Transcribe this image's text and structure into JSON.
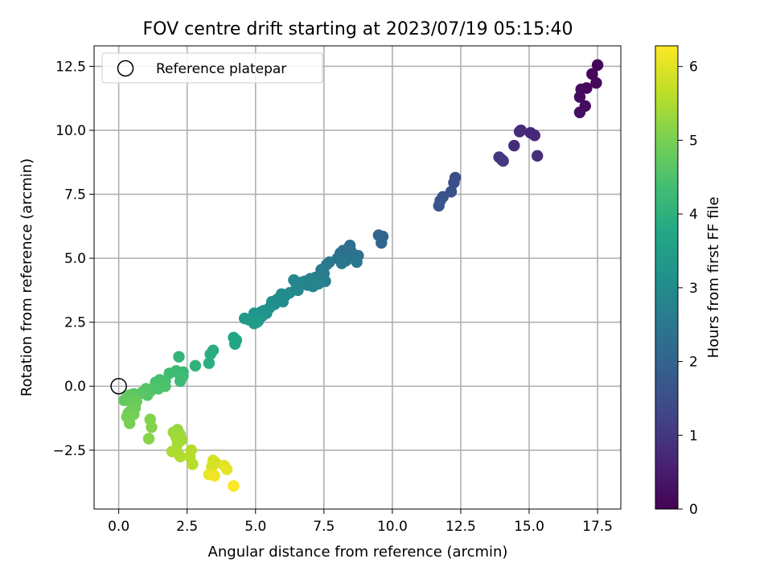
{
  "chart_data": {
    "type": "scatter",
    "title": "FOV centre drift starting at 2023/07/19 05:15:40",
    "xlabel": "Angular distance from reference (arcmin)",
    "ylabel": "Rotation from reference (arcmin)",
    "xlim": [
      -0.9,
      18.35
    ],
    "ylim": [
      -4.8,
      13.3
    ],
    "xticks": [
      0,
      2.5,
      5,
      7.5,
      10,
      12.5,
      15,
      17.5
    ],
    "xtick_labels": [
      "0.0",
      "2.5",
      "5.0",
      "7.5",
      "10.0",
      "12.5",
      "15.0",
      "17.5"
    ],
    "yticks": [
      -2.5,
      0,
      2.5,
      5,
      7.5,
      10,
      12.5
    ],
    "ytick_labels": [
      "−2.5",
      "0.0",
      "2.5",
      "5.0",
      "7.5",
      "10.0",
      "12.5"
    ],
    "grid": true,
    "legend": {
      "position": "top-left",
      "entries": [
        {
          "label": "Reference platepar",
          "marker": "open-circle"
        }
      ]
    },
    "reference_point": {
      "x": 0.0,
      "y": 0.0
    },
    "colorbar": {
      "label": "Hours from first FF file",
      "colormap": "viridis",
      "range": [
        0,
        6.28
      ],
      "ticks": [
        0,
        1,
        2,
        3,
        4,
        5,
        6
      ],
      "tick_labels": [
        "0",
        "1",
        "2",
        "3",
        "4",
        "5",
        "6"
      ]
    },
    "series": [
      {
        "points": [
          {
            "x": 17.5,
            "y": 12.55,
            "c": 0.05
          },
          {
            "x": 17.3,
            "y": 12.2,
            "c": 0.1
          },
          {
            "x": 17.45,
            "y": 11.85,
            "c": 0.12
          },
          {
            "x": 17.1,
            "y": 11.65,
            "c": 0.15
          },
          {
            "x": 16.9,
            "y": 11.6,
            "c": 0.18
          },
          {
            "x": 16.85,
            "y": 11.3,
            "c": 0.2
          },
          {
            "x": 17.05,
            "y": 10.95,
            "c": 0.22
          },
          {
            "x": 16.85,
            "y": 10.7,
            "c": 0.25
          },
          {
            "x": 15.05,
            "y": 9.9,
            "c": 0.7
          },
          {
            "x": 15.2,
            "y": 9.8,
            "c": 0.72
          },
          {
            "x": 14.65,
            "y": 9.95,
            "c": 0.75
          },
          {
            "x": 14.7,
            "y": 10.0,
            "c": 0.78
          },
          {
            "x": 14.45,
            "y": 9.4,
            "c": 0.8
          },
          {
            "x": 15.3,
            "y": 9.0,
            "c": 0.85
          },
          {
            "x": 13.9,
            "y": 8.95,
            "c": 1.0
          },
          {
            "x": 14.0,
            "y": 8.85,
            "c": 1.02
          },
          {
            "x": 14.05,
            "y": 8.8,
            "c": 1.05
          },
          {
            "x": 12.3,
            "y": 8.15,
            "c": 1.5
          },
          {
            "x": 12.25,
            "y": 7.95,
            "c": 1.52
          },
          {
            "x": 12.15,
            "y": 7.6,
            "c": 1.55
          },
          {
            "x": 11.85,
            "y": 7.4,
            "c": 1.6
          },
          {
            "x": 11.75,
            "y": 7.25,
            "c": 1.62
          },
          {
            "x": 11.7,
            "y": 7.05,
            "c": 1.65
          },
          {
            "x": 9.5,
            "y": 5.9,
            "c": 2.0
          },
          {
            "x": 9.65,
            "y": 5.85,
            "c": 2.02
          },
          {
            "x": 9.6,
            "y": 5.6,
            "c": 2.05
          },
          {
            "x": 8.45,
            "y": 5.5,
            "c": 2.25
          },
          {
            "x": 8.2,
            "y": 5.3,
            "c": 2.3
          },
          {
            "x": 8.1,
            "y": 5.2,
            "c": 2.32
          },
          {
            "x": 8.5,
            "y": 5.25,
            "c": 2.35
          },
          {
            "x": 8.75,
            "y": 5.1,
            "c": 2.38
          },
          {
            "x": 8.6,
            "y": 5.05,
            "c": 2.4
          },
          {
            "x": 8.0,
            "y": 5.0,
            "c": 2.42
          },
          {
            "x": 8.3,
            "y": 4.9,
            "c": 2.45
          },
          {
            "x": 8.7,
            "y": 4.85,
            "c": 2.48
          },
          {
            "x": 8.15,
            "y": 4.8,
            "c": 2.5
          },
          {
            "x": 7.7,
            "y": 4.85,
            "c": 2.5
          },
          {
            "x": 7.6,
            "y": 4.75,
            "c": 2.55
          },
          {
            "x": 7.4,
            "y": 4.55,
            "c": 2.6
          },
          {
            "x": 7.5,
            "y": 4.4,
            "c": 2.62
          },
          {
            "x": 7.55,
            "y": 4.1,
            "c": 2.65
          },
          {
            "x": 7.2,
            "y": 4.25,
            "c": 2.7
          },
          {
            "x": 7.0,
            "y": 4.2,
            "c": 2.72
          },
          {
            "x": 6.8,
            "y": 4.1,
            "c": 2.75
          },
          {
            "x": 6.9,
            "y": 3.95,
            "c": 2.78
          },
          {
            "x": 7.1,
            "y": 3.9,
            "c": 2.8
          },
          {
            "x": 7.3,
            "y": 4.0,
            "c": 2.82
          },
          {
            "x": 6.65,
            "y": 4.05,
            "c": 2.85
          },
          {
            "x": 6.5,
            "y": 3.95,
            "c": 2.88
          },
          {
            "x": 6.4,
            "y": 4.15,
            "c": 2.9
          },
          {
            "x": 6.55,
            "y": 3.75,
            "c": 2.92
          },
          {
            "x": 6.25,
            "y": 3.65,
            "c": 2.95
          },
          {
            "x": 6.1,
            "y": 3.55,
            "c": 2.98
          },
          {
            "x": 5.95,
            "y": 3.6,
            "c": 3.0
          },
          {
            "x": 5.8,
            "y": 3.4,
            "c": 3.02
          },
          {
            "x": 6.0,
            "y": 3.3,
            "c": 3.05
          },
          {
            "x": 5.7,
            "y": 3.2,
            "c": 3.08
          },
          {
            "x": 5.6,
            "y": 3.3,
            "c": 3.1
          },
          {
            "x": 5.5,
            "y": 3.05,
            "c": 3.12
          },
          {
            "x": 5.3,
            "y": 2.95,
            "c": 3.15
          },
          {
            "x": 5.4,
            "y": 2.85,
            "c": 3.18
          },
          {
            "x": 5.2,
            "y": 2.9,
            "c": 3.2
          },
          {
            "x": 5.25,
            "y": 2.75,
            "c": 3.22
          },
          {
            "x": 4.95,
            "y": 2.85,
            "c": 3.25
          },
          {
            "x": 4.9,
            "y": 2.65,
            "c": 3.28
          },
          {
            "x": 5.1,
            "y": 2.55,
            "c": 3.3
          },
          {
            "x": 4.95,
            "y": 2.45,
            "c": 3.32
          },
          {
            "x": 4.75,
            "y": 2.6,
            "c": 3.35
          },
          {
            "x": 4.6,
            "y": 2.65,
            "c": 3.38
          },
          {
            "x": 5.05,
            "y": 2.5,
            "c": 3.4
          },
          {
            "x": 4.2,
            "y": 1.9,
            "c": 3.7
          },
          {
            "x": 4.3,
            "y": 1.8,
            "c": 3.72
          },
          {
            "x": 4.25,
            "y": 1.65,
            "c": 3.75
          },
          {
            "x": 3.45,
            "y": 1.4,
            "c": 3.9
          },
          {
            "x": 3.35,
            "y": 1.25,
            "c": 3.92
          },
          {
            "x": 3.3,
            "y": 0.9,
            "c": 3.95
          },
          {
            "x": 2.8,
            "y": 0.8,
            "c": 4.05
          },
          {
            "x": 2.2,
            "y": 1.15,
            "c": 4.1
          },
          {
            "x": 2.35,
            "y": 0.55,
            "c": 4.2
          },
          {
            "x": 2.2,
            "y": 0.5,
            "c": 4.22
          },
          {
            "x": 2.1,
            "y": 0.6,
            "c": 4.25
          },
          {
            "x": 2.35,
            "y": 0.4,
            "c": 4.28
          },
          {
            "x": 2.25,
            "y": 0.2,
            "c": 4.3
          },
          {
            "x": 1.85,
            "y": 0.5,
            "c": 4.32
          },
          {
            "x": 1.7,
            "y": 0.2,
            "c": 4.38
          },
          {
            "x": 1.55,
            "y": 0.05,
            "c": 4.4
          },
          {
            "x": 1.5,
            "y": 0.25,
            "c": 4.42
          },
          {
            "x": 1.35,
            "y": 0.15,
            "c": 4.45
          },
          {
            "x": 1.3,
            "y": -0.05,
            "c": 4.48
          },
          {
            "x": 1.7,
            "y": 0.0,
            "c": 4.5
          },
          {
            "x": 1.45,
            "y": -0.1,
            "c": 4.52
          },
          {
            "x": 1.15,
            "y": -0.2,
            "c": 4.55
          },
          {
            "x": 1.0,
            "y": -0.1,
            "c": 4.58
          },
          {
            "x": 1.05,
            "y": -0.35,
            "c": 4.6
          },
          {
            "x": 0.85,
            "y": -0.25,
            "c": 4.62
          },
          {
            "x": 0.7,
            "y": -0.35,
            "c": 4.65
          },
          {
            "x": 0.55,
            "y": -0.3,
            "c": 4.68
          },
          {
            "x": 0.4,
            "y": -0.35,
            "c": 4.7
          },
          {
            "x": 0.3,
            "y": -0.45,
            "c": 4.72
          },
          {
            "x": 0.2,
            "y": -0.55,
            "c": 4.75
          },
          {
            "x": 0.45,
            "y": -0.55,
            "c": 4.78
          },
          {
            "x": 0.65,
            "y": -0.6,
            "c": 4.8
          },
          {
            "x": 0.5,
            "y": -0.75,
            "c": 4.82
          },
          {
            "x": 0.6,
            "y": -0.85,
            "c": 4.85
          },
          {
            "x": 0.45,
            "y": -0.95,
            "c": 4.88
          },
          {
            "x": 0.35,
            "y": -1.05,
            "c": 4.9
          },
          {
            "x": 0.55,
            "y": -1.1,
            "c": 4.92
          },
          {
            "x": 0.3,
            "y": -1.2,
            "c": 4.95
          },
          {
            "x": 0.4,
            "y": -1.45,
            "c": 4.98
          },
          {
            "x": 1.15,
            "y": -1.3,
            "c": 5.1
          },
          {
            "x": 1.2,
            "y": -1.6,
            "c": 5.12
          },
          {
            "x": 1.1,
            "y": -2.05,
            "c": 5.15
          },
          {
            "x": 2.15,
            "y": -1.7,
            "c": 5.3
          },
          {
            "x": 2.0,
            "y": -1.8,
            "c": 5.32
          },
          {
            "x": 2.25,
            "y": -1.9,
            "c": 5.35
          },
          {
            "x": 2.1,
            "y": -2.0,
            "c": 5.38
          },
          {
            "x": 2.3,
            "y": -2.1,
            "c": 5.4
          },
          {
            "x": 2.15,
            "y": -2.25,
            "c": 5.42
          },
          {
            "x": 1.95,
            "y": -2.55,
            "c": 5.48
          },
          {
            "x": 2.15,
            "y": -2.6,
            "c": 5.5
          },
          {
            "x": 2.25,
            "y": -2.75,
            "c": 5.52
          },
          {
            "x": 2.65,
            "y": -2.5,
            "c": 5.55
          },
          {
            "x": 2.6,
            "y": -2.75,
            "c": 5.58
          },
          {
            "x": 2.7,
            "y": -3.05,
            "c": 5.6
          },
          {
            "x": 3.45,
            "y": -2.9,
            "c": 5.85
          },
          {
            "x": 3.55,
            "y": -3.0,
            "c": 5.88
          },
          {
            "x": 3.4,
            "y": -3.15,
            "c": 5.9
          },
          {
            "x": 3.85,
            "y": -3.1,
            "c": 6.0
          },
          {
            "x": 3.95,
            "y": -3.25,
            "c": 6.05
          },
          {
            "x": 3.3,
            "y": -3.45,
            "c": 6.1
          },
          {
            "x": 3.5,
            "y": -3.5,
            "c": 6.15
          },
          {
            "x": 4.2,
            "y": -3.9,
            "c": 6.25
          }
        ]
      }
    ]
  }
}
